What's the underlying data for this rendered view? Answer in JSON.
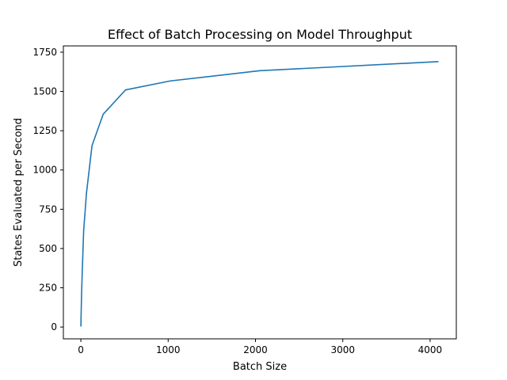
{
  "chart_data": {
    "type": "line",
    "title": "Effect of Batch Processing on Model Throughput",
    "xlabel": "Batch Size",
    "ylabel": "States Evaluated per Second",
    "xlim": [
      -200,
      4300
    ],
    "ylim": [
      -75,
      1790
    ],
    "x_ticks": [
      0,
      1000,
      2000,
      3000,
      4000
    ],
    "y_ticks": [
      0,
      250,
      500,
      750,
      1000,
      1250,
      1500,
      1750
    ],
    "grid": false,
    "series": [
      {
        "color": "#1f77b4",
        "x": [
          1,
          2,
          4,
          8,
          16,
          32,
          64,
          128,
          256,
          512,
          1024,
          2048,
          4096
        ],
        "y": [
          3,
          50,
          100,
          200,
          350,
          610,
          850,
          1155,
          1355,
          1510,
          1567,
          1632,
          1690
        ]
      }
    ]
  }
}
